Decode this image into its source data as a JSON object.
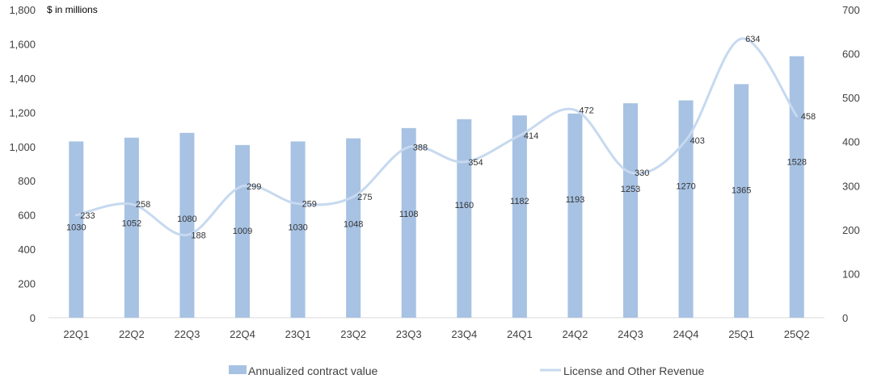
{
  "chart_data": {
    "type": "bar",
    "unit_label": "$ in millions",
    "categories": [
      "22Q1",
      "22Q2",
      "22Q3",
      "22Q4",
      "23Q1",
      "23Q2",
      "23Q3",
      "23Q4",
      "24Q1",
      "24Q2",
      "24Q3",
      "24Q4",
      "25Q1",
      "25Q2"
    ],
    "series": [
      {
        "name": "Annualized contract value",
        "type": "bar",
        "axis": "left",
        "color": "#a7c2e3",
        "values": [
          1030,
          1052,
          1080,
          1009,
          1030,
          1048,
          1108,
          1160,
          1182,
          1193,
          1253,
          1270,
          1365,
          1528
        ]
      },
      {
        "name": "License and Other Revenue",
        "type": "line",
        "axis": "right",
        "color": "#c6d9ef",
        "values": [
          233,
          258,
          188,
          299,
          259,
          275,
          388,
          354,
          414,
          472,
          330,
          403,
          634,
          458
        ]
      }
    ],
    "y_left": {
      "min": 0,
      "max": 1800,
      "step": 200,
      "ticks": [
        "0",
        "200",
        "400",
        "600",
        "800",
        "1,000",
        "1,200",
        "1,400",
        "1,600",
        "1,800"
      ]
    },
    "y_right": {
      "min": 0,
      "max": 700,
      "step": 100,
      "ticks": [
        "0",
        "100",
        "200",
        "300",
        "400",
        "500",
        "600",
        "700"
      ]
    },
    "legend_position": "bottom"
  }
}
